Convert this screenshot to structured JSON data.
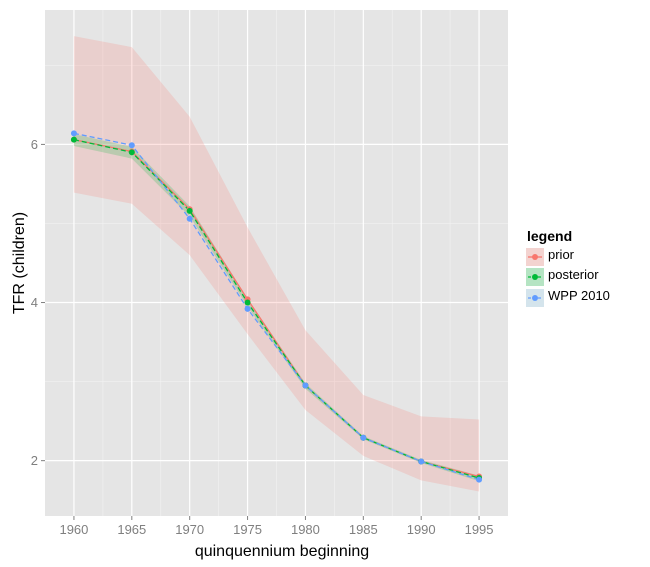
{
  "chart_data": {
    "type": "line",
    "xlabel": "quinquennium beginning",
    "ylabel": "TFR (children)",
    "x": [
      1960,
      1965,
      1970,
      1975,
      1980,
      1985,
      1990,
      1995
    ],
    "xlim": [
      1957.5,
      1997.5
    ],
    "ylim": [
      1.3,
      7.7
    ],
    "x_ticks": [
      "1960",
      "1965",
      "1970",
      "1975",
      "1980",
      "1985",
      "1990",
      "1995"
    ],
    "y_ticks": [
      "2",
      "4",
      "6"
    ],
    "grid": true,
    "legend": {
      "title": "legend",
      "position": "right",
      "labels": [
        "prior",
        "posterior",
        "WPP 2010"
      ]
    },
    "series": [
      {
        "name": "prior",
        "color": "#f8766d",
        "dash": "solid",
        "values": [
          6.06,
          5.91,
          5.18,
          4.04,
          2.95,
          2.29,
          1.99,
          1.8
        ],
        "band_upper": [
          7.37,
          7.23,
          6.35,
          4.95,
          3.65,
          2.83,
          2.56,
          2.52
        ],
        "band_lower": [
          5.39,
          5.25,
          4.6,
          3.6,
          2.64,
          2.06,
          1.75,
          1.61
        ]
      },
      {
        "name": "posterior",
        "color": "#00ba38",
        "dash": "dashed",
        "values": [
          6.06,
          5.9,
          5.16,
          4.0,
          2.95,
          2.29,
          1.99,
          1.78
        ],
        "band_upper": [
          6.13,
          5.97,
          5.22,
          4.05,
          2.98,
          2.31,
          2.01,
          1.81
        ],
        "band_lower": [
          5.98,
          5.82,
          5.09,
          3.95,
          2.91,
          2.27,
          1.97,
          1.74
        ]
      },
      {
        "name": "WPP 2010",
        "color": "#619cff",
        "dash": "dashed",
        "values": [
          6.14,
          5.99,
          5.06,
          3.92,
          2.95,
          2.29,
          1.99,
          1.76
        ]
      }
    ]
  }
}
